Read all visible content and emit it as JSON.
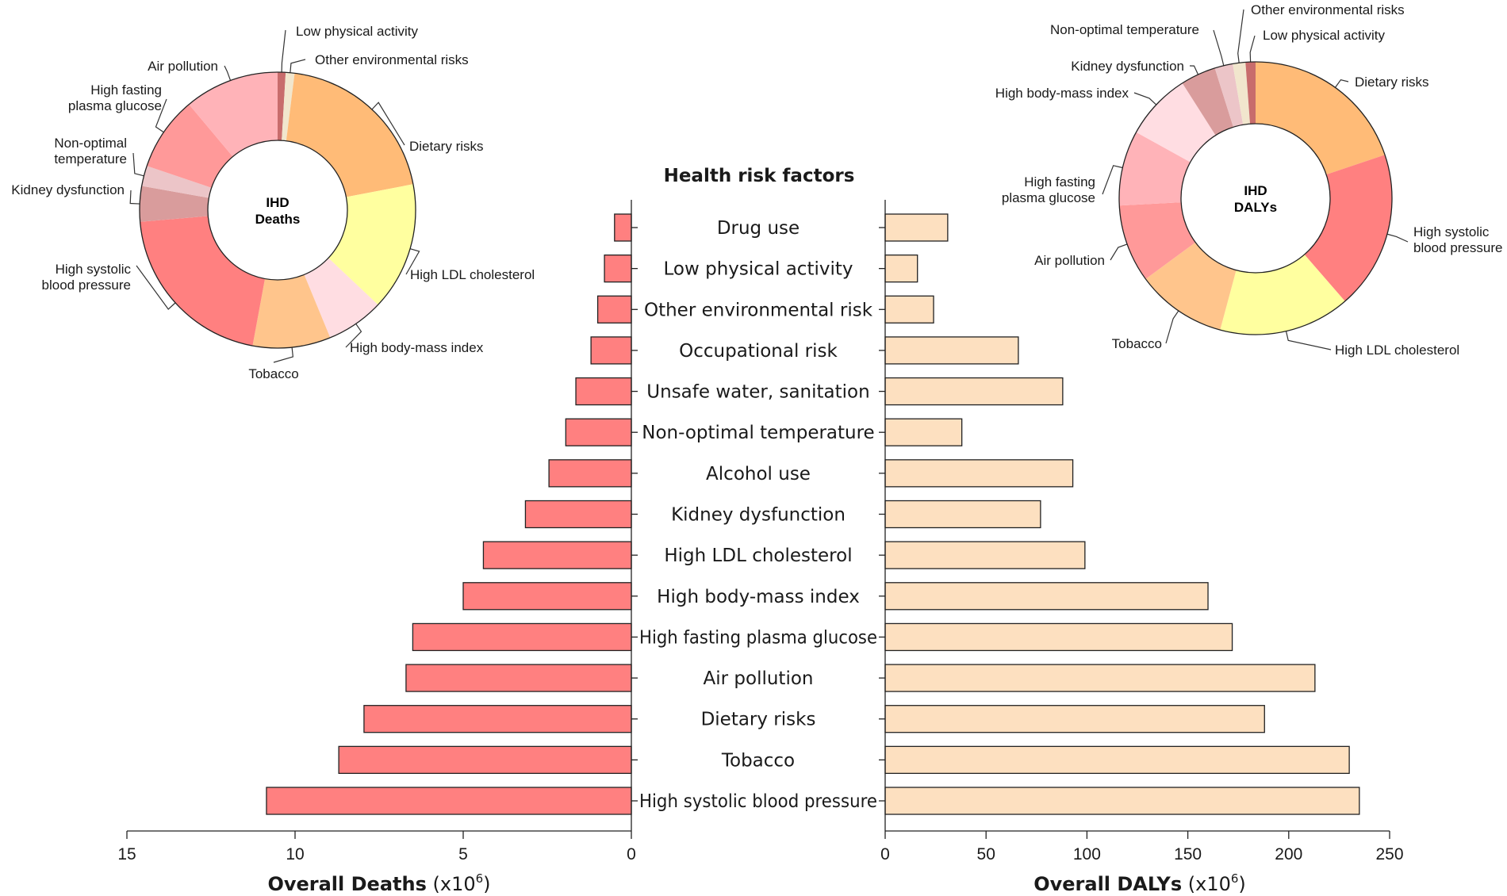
{
  "chart_data": [
    {
      "type": "bar",
      "orientation": "horizontal-left",
      "title": "Health risk factors",
      "xlabel": "Overall Deaths",
      "xlabel_unit": "(x10",
      "xlabel_exp": "6",
      "xlabel_close": ")",
      "xlim": [
        0,
        15
      ],
      "xticks": [
        15,
        10,
        5,
        0
      ],
      "color": "#ff8080",
      "categories": [
        "Drug use",
        "Low physical activity",
        "Other environmental risk",
        "Occupational risk",
        "Unsafe water, sanitation",
        "Non-optimal temperature",
        "Alcohol use",
        "Kidney dysfunction",
        "High LDL cholesterol",
        "High body-mass index",
        "High fasting plasma glucose",
        "Air pollution",
        "Dietary risks",
        "Tobacco",
        "High systolic blood pressure"
      ],
      "values": [
        0.5,
        0.8,
        1.0,
        1.2,
        1.65,
        1.95,
        2.45,
        3.15,
        4.4,
        5.0,
        6.5,
        6.7,
        7.95,
        8.7,
        10.85
      ]
    },
    {
      "type": "bar",
      "orientation": "horizontal-right",
      "xlabel": "Overall DALYs",
      "xlabel_unit": "(x10",
      "xlabel_exp": "6",
      "xlabel_close": ")",
      "xlim": [
        0,
        250
      ],
      "xticks": [
        0,
        50,
        100,
        150,
        200,
        250
      ],
      "color": "#fde0c0",
      "categories": [
        "Drug use",
        "Low physical activity",
        "Other environmental risk",
        "Occupational risk",
        "Unsafe water, sanitation",
        "Non-optimal temperature",
        "Alcohol use",
        "Kidney dysfunction",
        "High LDL cholesterol",
        "High body-mass index",
        "High fasting plasma glucose",
        "Air pollution",
        "Dietary risks",
        "Tobacco",
        "High systolic blood pressure"
      ],
      "values": [
        31,
        16,
        24,
        66,
        88,
        38,
        93,
        77,
        99,
        160,
        172,
        213,
        188,
        230,
        235
      ]
    },
    {
      "type": "pie",
      "center_label": [
        "IHD",
        "Deaths"
      ],
      "slices": [
        {
          "label": "Low physical activity",
          "lines": [
            "Low physical activity"
          ],
          "value": 0.9,
          "color": "#c86c6c"
        },
        {
          "label": "Other environmental risks",
          "lines": [
            "Other environmental risks"
          ],
          "value": 1.0,
          "color": "#f1e6cd"
        },
        {
          "label": "Dietary risks",
          "lines": [
            "Dietary risks"
          ],
          "value": 19.3,
          "color": "#ffbb77"
        },
        {
          "label": "High LDL cholesterol",
          "lines": [
            "High LDL cholesterol"
          ],
          "value": 14.5,
          "color": "#ffff9f"
        },
        {
          "label": "High body-mass index",
          "lines": [
            "High body-mass index"
          ],
          "value": 6.5,
          "color": "#ffdde2"
        },
        {
          "label": "Tobacco",
          "lines": [
            "Tobacco"
          ],
          "value": 8.8,
          "color": "#ffc58c"
        },
        {
          "label": "High systolic blood pressure",
          "lines": [
            "High systolic",
            "blood pressure"
          ],
          "value": 20.0,
          "color": "#ff8080"
        },
        {
          "label": "Kidney dysfunction",
          "lines": [
            "Kidney dysfunction"
          ],
          "value": 4.0,
          "color": "#d99c9c"
        },
        {
          "label": "Non-optimal temperature",
          "lines": [
            "Non-optimal",
            "temperature"
          ],
          "value": 2.3,
          "color": "#ecc5c8"
        },
        {
          "label": "High fasting plasma glucose",
          "lines": [
            "High fasting",
            "plasma glucose"
          ],
          "value": 8.4,
          "color": "#ff9999"
        },
        {
          "label": "Air pollution",
          "lines": [
            "Air pollution"
          ],
          "value": 10.7,
          "color": "#ffb3b8"
        }
      ]
    },
    {
      "type": "pie",
      "center_label": [
        "IHD",
        "DALYs"
      ],
      "slices": [
        {
          "label": "Dietary risks",
          "lines": [
            "Dietary risks"
          ],
          "value": 18.5,
          "color": "#ffbb77"
        },
        {
          "label": "High systolic blood pressure",
          "lines": [
            "High systolic",
            "blood pressure"
          ],
          "value": 17.5,
          "color": "#ff8080"
        },
        {
          "label": "High LDL cholesterol",
          "lines": [
            "High LDL cholesterol"
          ],
          "value": 14.5,
          "color": "#ffff9f"
        },
        {
          "label": "Tobacco",
          "lines": [
            "Tobacco"
          ],
          "value": 10.0,
          "color": "#ffc58c"
        },
        {
          "label": "Air pollution",
          "lines": [
            "Air pollution"
          ],
          "value": 8.6,
          "color": "#ff9999"
        },
        {
          "label": "High fasting plasma glucose",
          "lines": [
            "High fasting",
            "plasma glucose"
          ],
          "value": 8.3,
          "color": "#ffb3b8"
        },
        {
          "label": "High body-mass index",
          "lines": [
            "High body-mass index"
          ],
          "value": 7.4,
          "color": "#ffdde2"
        },
        {
          "label": "Kidney dysfunction",
          "lines": [
            "Kidney dysfunction"
          ],
          "value": 3.9,
          "color": "#d99c9c"
        },
        {
          "label": "Non-optimal temperature",
          "lines": [
            "Non-optimal temperature"
          ],
          "value": 2.0,
          "color": "#ecc5c8"
        },
        {
          "label": "Other environmental risks",
          "lines": [
            "Other environmental risks"
          ],
          "value": 1.4,
          "color": "#f1e6cd"
        },
        {
          "label": "Low physical activity",
          "lines": [
            "Low physical activity"
          ],
          "value": 1.1,
          "color": "#c86c6c"
        }
      ]
    }
  ]
}
